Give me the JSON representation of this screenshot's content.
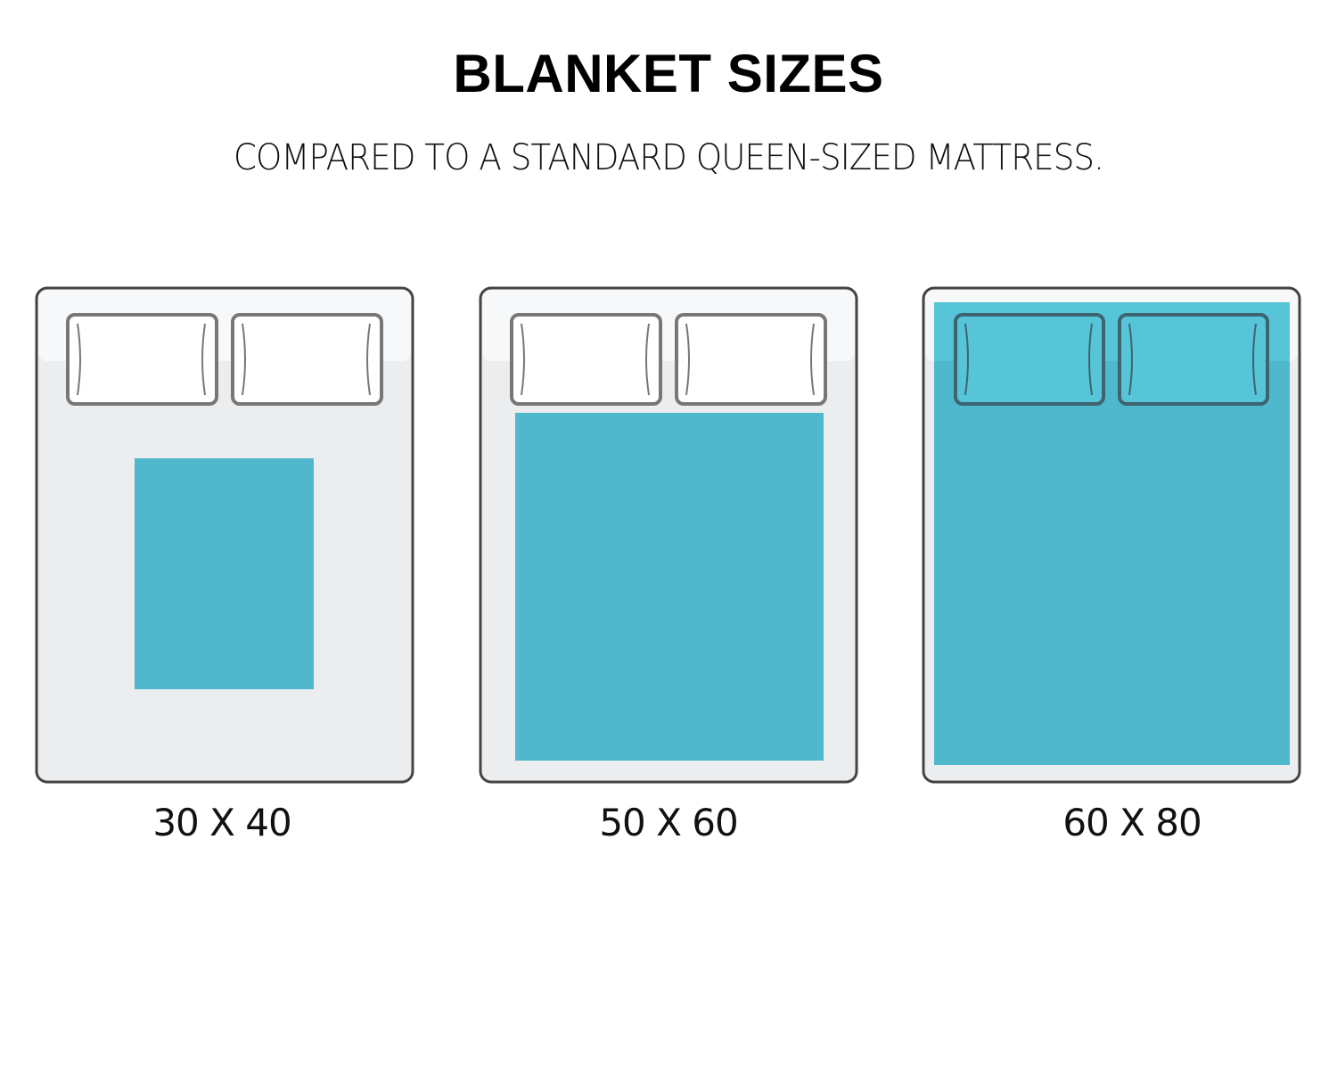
{
  "title": "BLANKET SIZES",
  "subtitle": "COMPARED TO A STANDARD QUEEN-SIZED MATTRESS.",
  "blankets": [
    {
      "label": "30 X 40"
    },
    {
      "label": "50 X 60"
    },
    {
      "label": "60 X 80"
    }
  ],
  "colors": {
    "blanket": "#4fb8cc",
    "mattress": "#ebedef",
    "outline": "#555555"
  }
}
